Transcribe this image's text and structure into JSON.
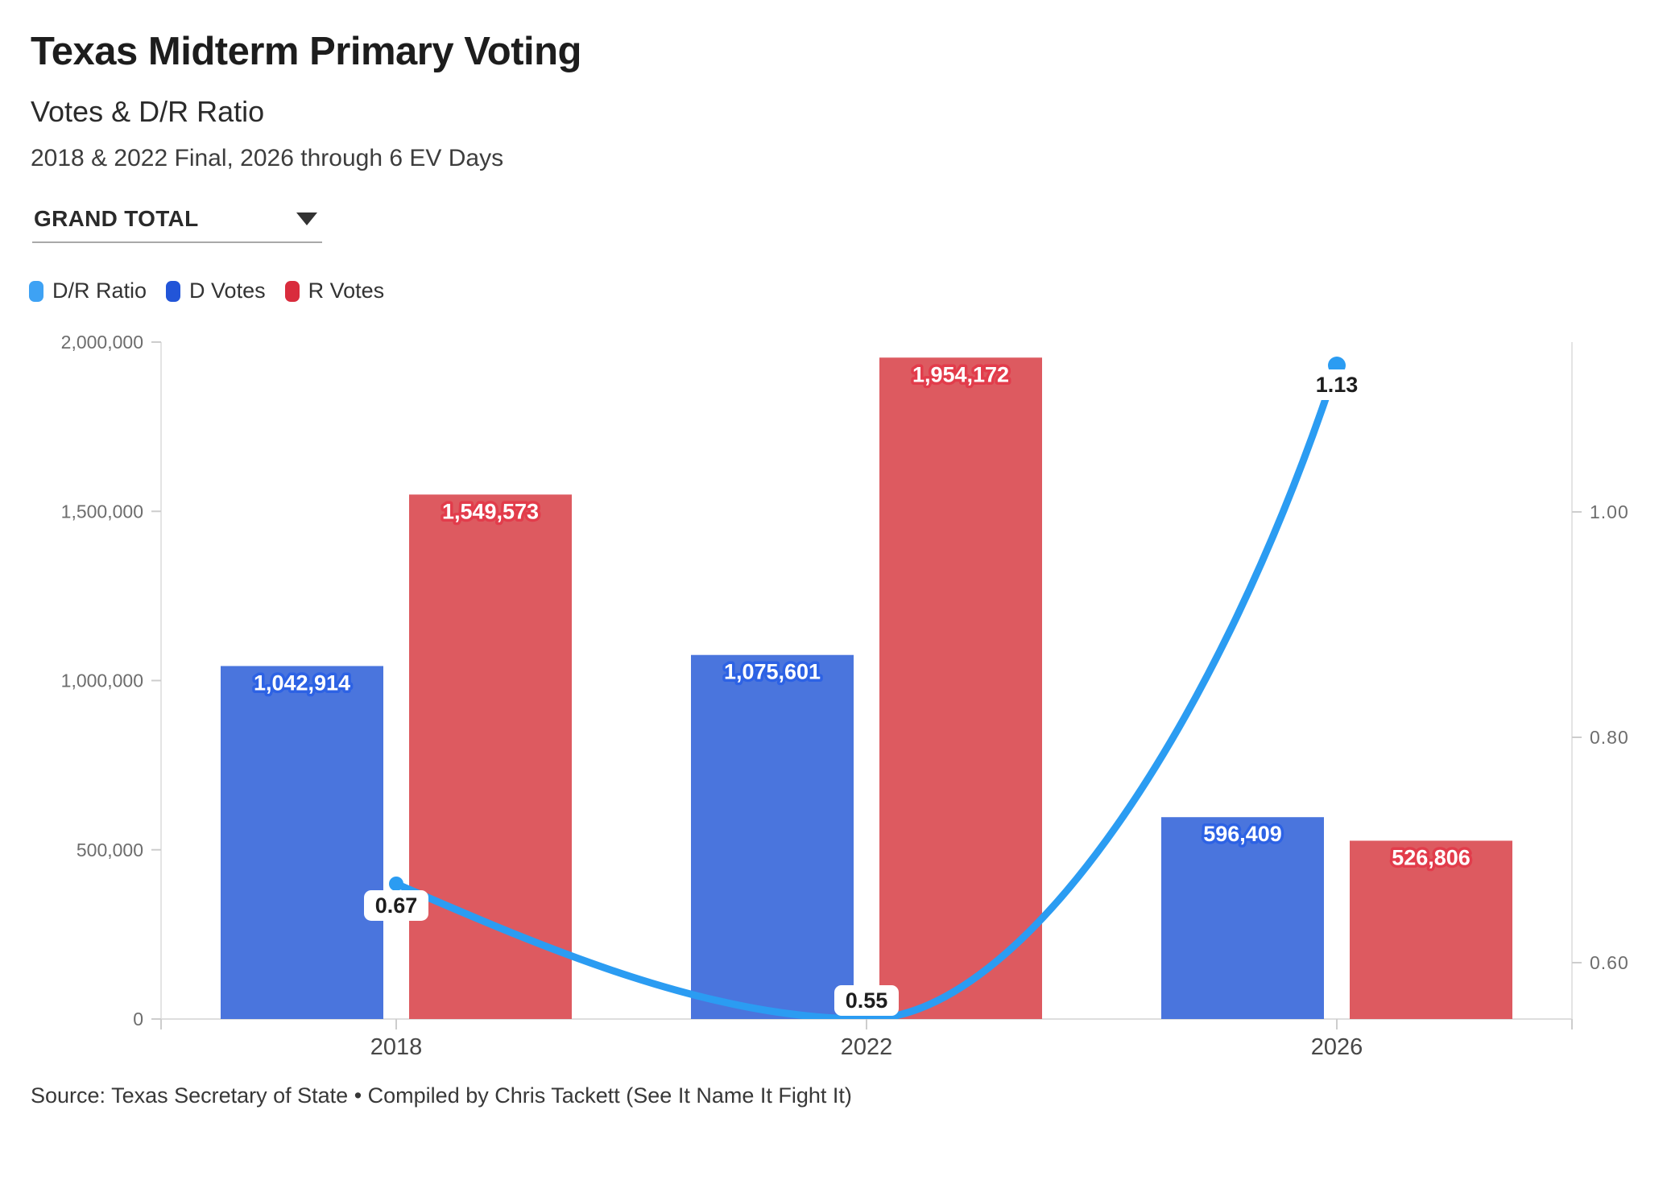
{
  "header": {
    "title": "Texas Midterm Primary Voting",
    "subtitle": "Votes & D/R Ratio",
    "period_note": "2018 & 2022 Final, 2026 through 6 EV Days"
  },
  "controls": {
    "scope_dropdown": {
      "value": "GRAND TOTAL",
      "icon": "triangle-down-icon"
    }
  },
  "legend": {
    "items": [
      {
        "label": "D/R Ratio",
        "color": "#3ea2f4"
      },
      {
        "label": "D Votes",
        "color": "#2255d8"
      },
      {
        "label": "R Votes",
        "color": "#d92c3d"
      }
    ]
  },
  "chart_data": {
    "type": "bar+line",
    "title": "Texas Midterm Primary Voting",
    "categories": [
      "2018",
      "2022",
      "2026"
    ],
    "series": [
      {
        "name": "D Votes",
        "values": [
          1042914,
          1075601,
          596409
        ],
        "labels": [
          "1,042,914",
          "1,075,601",
          "596,409"
        ],
        "bar_color": "#4a75dd",
        "halo_color": "#2d62e4"
      },
      {
        "name": "R Votes",
        "values": [
          1549573,
          1954172,
          526806
        ],
        "labels": [
          "1,549,573",
          "1,954,172",
          "526,806"
        ],
        "bar_color": "#dd5a60",
        "halo_color": "#e23c4b"
      }
    ],
    "line": {
      "name": "D/R Ratio",
      "values": [
        0.67,
        0.55,
        1.13
      ],
      "labels": [
        "0.67",
        "0.55",
        "1.13"
      ],
      "color": "#2b9cf2"
    },
    "left_axis": {
      "min": 0,
      "max": 2000000,
      "ticks": [
        {
          "value": 0,
          "label": "0"
        },
        {
          "value": 500000,
          "label": "500,000"
        },
        {
          "value": 1000000,
          "label": "1,000,000"
        },
        {
          "value": 1500000,
          "label": "1,500,000"
        },
        {
          "value": 2000000,
          "label": "2,000,000"
        }
      ]
    },
    "right_axis": {
      "range": [
        0.55,
        1.1507
      ],
      "ticks": [
        {
          "value": 0.6,
          "label": "0.60"
        },
        {
          "value": 0.8,
          "label": "0.80"
        },
        {
          "value": 1.0,
          "label": "1.00"
        }
      ]
    },
    "grid": "off",
    "legend_position": "top-left"
  },
  "footer": {
    "source": "Source: Texas Secretary of State • Compiled by Chris Tackett (See It Name It Fight It)"
  }
}
